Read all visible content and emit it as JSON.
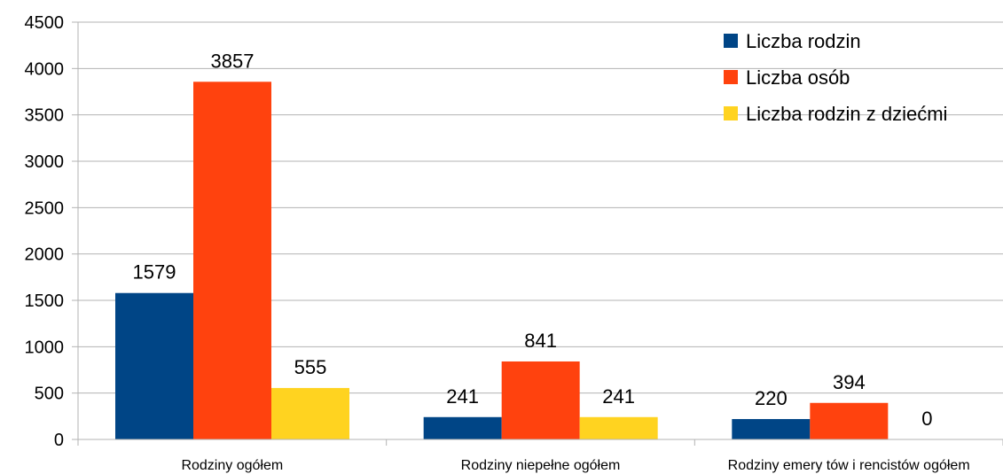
{
  "chart_data": {
    "type": "bar",
    "categories": [
      "Rodziny  ogółem",
      "Rodziny  niepełne ogółem",
      "Rodziny  emery tów i rencistów ogółem"
    ],
    "series": [
      {
        "name": "Liczba rodzin",
        "values": [
          1579,
          241,
          220
        ],
        "color": "#004586"
      },
      {
        "name": "Liczba osób",
        "values": [
          3857,
          841,
          394
        ],
        "color": "#ff420e"
      },
      {
        "name": "Liczba rodzin z dziećmi",
        "values": [
          555,
          241,
          0
        ],
        "color": "#ffd320"
      }
    ],
    "ylim": [
      0,
      4500
    ],
    "yticks": [
      0,
      500,
      1000,
      1500,
      2000,
      2500,
      3000,
      3500,
      4000,
      4500
    ],
    "title": "",
    "xlabel": "",
    "ylabel": "",
    "grid": true,
    "legend_position": "top-right",
    "data_labels": true
  }
}
